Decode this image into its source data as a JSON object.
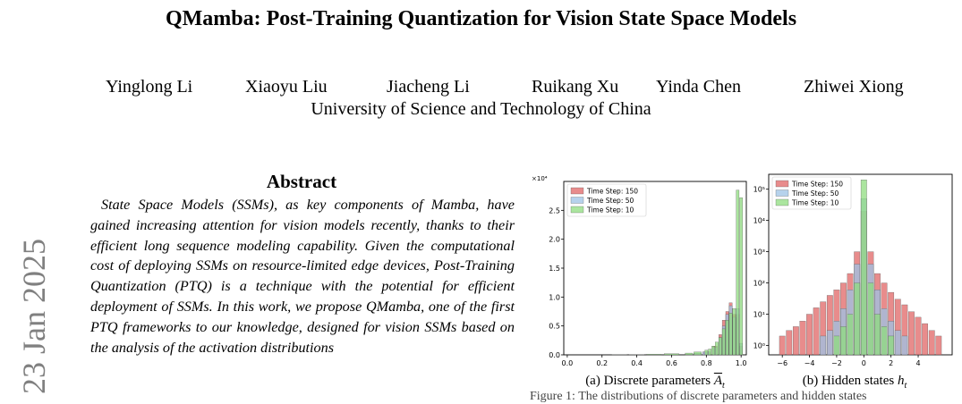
{
  "paper": {
    "title": "QMamba: Post-Training Quantization for Vision State Space Models",
    "authors": [
      "Yinglong Li",
      "Xiaoyu Liu",
      "Jiacheng Li",
      "Ruikang Xu",
      "Yinda Chen",
      "Zhiwei Xiong"
    ],
    "affiliation": "University of Science and Technology of China",
    "side_stamp": "23 Jan 2025",
    "abstract_heading": "Abstract",
    "abstract_text": "State Space Models (SSMs), as key components of Mamba, have gained increasing attention for vision models recently, thanks to their efficient long sequence modeling capability. Given the computational cost of deploying SSMs on resource-limited edge devices, Post-Training Quantization (PTQ) is a technique with the potential for efficient deployment of SSMs. In this work, we propose QMamba, one of the first PTQ frameworks to our knowledge, designed for vision SSMs based on the analysis of the activation distributions",
    "caption_a": "(a) Discrete parameters",
    "caption_a_symbol": "A",
    "caption_a_sub": "t",
    "caption_b": "(b) Hidden states",
    "caption_b_symbol": "h",
    "caption_b_sub": "t",
    "figure_caption_partial": "Figure 1: The distributions of discrete parameters and hidden states"
  },
  "chart_data": [
    {
      "type": "bar",
      "title": "",
      "offset_label": "×10⁴",
      "xlim": [
        -0.02,
        1.03
      ],
      "ylim": [
        0,
        3.0
      ],
      "x_ticks": [
        "0.0",
        "0.2",
        "0.4",
        "0.6",
        "0.8",
        "1.0"
      ],
      "x_tick_values": [
        0.0,
        0.2,
        0.4,
        0.6,
        0.8,
        1.0
      ],
      "y_ticks": [
        "0.0",
        "0.5",
        "1.0",
        "1.5",
        "2.0",
        "2.5"
      ],
      "y_tick_values": [
        0.0,
        0.5,
        1.0,
        1.5,
        2.0,
        2.5
      ],
      "legend_position": "top-left",
      "series": [
        {
          "name": "Time Step: 150",
          "color": "#e06666",
          "x": [
            0.7,
            0.75,
            0.8,
            0.85,
            0.88,
            0.9,
            0.92,
            0.94,
            0.96,
            0.98,
            1.0
          ],
          "values": [
            0.01,
            0.03,
            0.05,
            0.15,
            0.35,
            0.6,
            0.75,
            0.9,
            0.7,
            0.7,
            0.15
          ]
        },
        {
          "name": "Time Step: 50",
          "color": "#9dc3e6",
          "x": [
            0.7,
            0.75,
            0.8,
            0.85,
            0.88,
            0.9,
            0.92,
            0.94,
            0.96,
            0.98,
            1.0
          ],
          "values": [
            0.01,
            0.03,
            0.05,
            0.13,
            0.3,
            0.5,
            0.7,
            0.85,
            0.65,
            0.8,
            0.2
          ]
        },
        {
          "name": "Time Step: 10",
          "color": "#8fdc7f",
          "x": [
            0.3,
            0.4,
            0.5,
            0.6,
            0.7,
            0.75,
            0.8,
            0.82,
            0.84,
            0.86,
            0.88,
            0.9,
            0.92,
            0.94,
            0.96,
            0.98,
            1.0
          ],
          "values": [
            0.005,
            0.005,
            0.01,
            0.02,
            0.03,
            0.05,
            0.08,
            0.1,
            0.15,
            0.22,
            0.3,
            0.45,
            0.6,
            0.72,
            0.8,
            2.85,
            2.72
          ]
        }
      ]
    },
    {
      "type": "bar",
      "title": "",
      "y_scale": "log",
      "xlim": [
        -7,
        6.5
      ],
      "ylim": [
        0.5,
        300000
      ],
      "x_ticks": [
        "−6",
        "−4",
        "−2",
        "0",
        "2",
        "4"
      ],
      "x_tick_values": [
        -6,
        -4,
        -2,
        0,
        2,
        4
      ],
      "y_ticks": [
        "10⁰",
        "10¹",
        "10²",
        "10³",
        "10⁴",
        "10⁵"
      ],
      "y_tick_values": [
        1,
        10,
        100,
        1000,
        10000,
        100000
      ],
      "legend_position": "top-right",
      "series": [
        {
          "name": "Time Step: 150",
          "color": "#e06666",
          "x": [
            -6,
            -5.5,
            -5,
            -4.5,
            -4,
            -3.5,
            -3,
            -2.5,
            -2,
            -1.5,
            -1,
            -0.5,
            0,
            0.5,
            1,
            1.5,
            2,
            2.5,
            3,
            3.5,
            4,
            4.5,
            5,
            5.5
          ],
          "values": [
            2,
            3,
            4,
            6,
            10,
            16,
            25,
            40,
            60,
            100,
            200,
            1000,
            20000,
            1000,
            200,
            100,
            50,
            30,
            20,
            12,
            8,
            5,
            3,
            2
          ]
        },
        {
          "name": "Time Step: 50",
          "color": "#9dc3e6",
          "x": [
            -3,
            -2.5,
            -2,
            -1.5,
            -1,
            -0.5,
            0,
            0.5,
            1,
            1.5,
            2,
            2.5,
            3
          ],
          "values": [
            2,
            3,
            6,
            15,
            60,
            400,
            50000,
            400,
            60,
            15,
            6,
            3,
            2
          ]
        },
        {
          "name": "Time Step: 10",
          "color": "#8fdc7f",
          "x": [
            -2,
            -1.5,
            -1,
            -0.5,
            0,
            0.5,
            1,
            1.5,
            2
          ],
          "values": [
            2,
            4,
            10,
            100,
            200000,
            100,
            10,
            4,
            2
          ]
        }
      ]
    }
  ]
}
